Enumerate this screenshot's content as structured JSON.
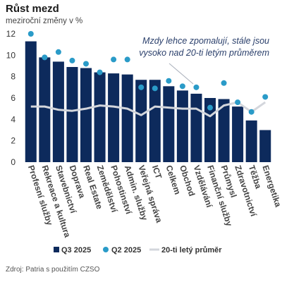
{
  "title": "Růst mezd",
  "subtitle": "meziroční změny v %",
  "source": "Zdroj: Patria s použitím CZSO",
  "chart_data": {
    "type": "bar",
    "annotation": [
      "Mzdy lehce zpomalují, stále jsou",
      "vysoko nad 20-ti letým průměrem"
    ],
    "categories": [
      "Profesní služby",
      "Rekreace a kultura",
      "Stavebnictví",
      "Doprava",
      "Real Estate",
      "Zemědělství",
      "Pohostinství",
      "Admin. služby",
      "Veřejná správa",
      "ICT",
      "Celkem",
      "Obchod",
      "Vzdělávání",
      "Finanční služby",
      "Průmysl",
      "Zdravotnictví",
      "Těžba",
      "Energetika"
    ],
    "ylim": [
      0,
      12
    ],
    "yticks": [
      "0",
      "2",
      "4",
      "6",
      "8",
      "10",
      "12"
    ],
    "grid": false,
    "legend_position": "bottom",
    "series": [
      {
        "name": "Q3 2025",
        "kind": "bar",
        "color": "#0d2a5c",
        "values": [
          11.3,
          9.8,
          9.4,
          8.9,
          8.8,
          8.4,
          8.3,
          8.2,
          7.7,
          7.7,
          7.1,
          6.7,
          6.4,
          6.0,
          5.9,
          5.2,
          3.9,
          3.0
        ]
      },
      {
        "name": "Q2 2025",
        "kind": "dot",
        "color": "#2a9bc8",
        "values": [
          12.0,
          9.8,
          10.3,
          9.5,
          9.2,
          8.4,
          9.6,
          9.6,
          7.0,
          6.9,
          7.6,
          7.1,
          7.0,
          5.1,
          7.4,
          5.6,
          4.7,
          6.1
        ]
      },
      {
        "name": "20-ti letý průměr",
        "kind": "line",
        "color": "#d3d6dc",
        "values": [
          5.2,
          5.2,
          4.9,
          4.8,
          5.0,
          5.3,
          5.2,
          5.0,
          4.4,
          5.2,
          5.1,
          5.0,
          5.0,
          4.3,
          5.3,
          5.6,
          4.7,
          5.6
        ]
      }
    ]
  }
}
